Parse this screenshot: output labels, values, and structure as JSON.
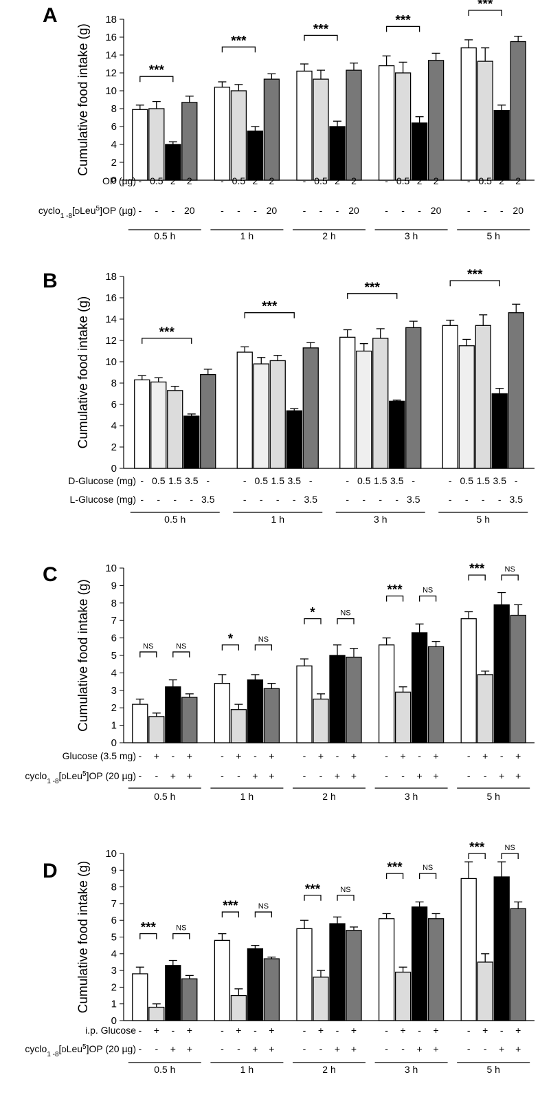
{
  "colors": {
    "white": "#ffffff",
    "light": "#dcdcdc",
    "lighter": "#efefef",
    "black": "#000000",
    "dark": "#787878"
  },
  "chart_data": [
    {
      "type": "bar",
      "panel": "A",
      "ylabel": "Cumulative food intake (g)",
      "ylim": [
        0,
        18
      ],
      "ystep": 2,
      "groups": [
        "0.5 h",
        "1 h",
        "2 h",
        "3 h",
        "5 h"
      ],
      "fills": [
        "white",
        "light",
        "black",
        "dark"
      ],
      "series": [
        {
          "name": "OP -",
          "values": [
            7.9,
            10.4,
            12.2,
            12.8,
            14.8
          ],
          "errors": [
            0.5,
            0.6,
            0.8,
            1.1,
            0.9
          ]
        },
        {
          "name": "OP 0.5 µg",
          "values": [
            8.0,
            10.0,
            11.3,
            12.0,
            13.3
          ],
          "errors": [
            0.8,
            0.7,
            1.0,
            1.2,
            1.5
          ]
        },
        {
          "name": "OP 2 µg",
          "values": [
            4.0,
            5.5,
            6.0,
            6.4,
            7.8
          ],
          "errors": [
            0.3,
            0.5,
            0.6,
            0.7,
            0.6
          ]
        },
        {
          "name": "OP 2 µg + cyclo 20 µg",
          "values": [
            8.7,
            11.3,
            12.3,
            13.4,
            15.5
          ],
          "errors": [
            0.7,
            0.6,
            0.8,
            0.8,
            0.6
          ]
        }
      ],
      "conditions": [
        {
          "label": "OP (µg)",
          "values": [
            "-",
            "0.5",
            "2",
            "2"
          ]
        },
        {
          "label": "cyclo1 -8[DLeu5]OP (µg)",
          "values": [
            "-",
            "-",
            "-",
            "20"
          ],
          "rich": true
        }
      ],
      "sig": [
        {
          "text": "***",
          "from": 0,
          "to": 2,
          "at": 11.6
        },
        {
          "text": "***",
          "from": 0,
          "to": 2,
          "at": 14.9
        },
        {
          "text": "***",
          "from": 0,
          "to": 2,
          "at": 16.2
        },
        {
          "text": "***",
          "from": 0,
          "to": 2,
          "at": 17.2
        },
        {
          "text": "***",
          "from": 0,
          "to": 2,
          "at": 19.0
        }
      ]
    },
    {
      "type": "bar",
      "panel": "B",
      "ylabel": "Cumulative food intake (g)",
      "ylim": [
        0,
        18
      ],
      "ystep": 2,
      "groups": [
        "0.5 h",
        "1 h",
        "3 h",
        "5 h"
      ],
      "fills": [
        "white",
        "lighter",
        "light",
        "black",
        "dark"
      ],
      "series": [
        {
          "name": "D-Glucose -",
          "values": [
            8.3,
            10.9,
            12.3,
            13.4
          ],
          "errors": [
            0.4,
            0.5,
            0.7,
            0.5
          ]
        },
        {
          "name": "D-Glucose 0.5 mg",
          "values": [
            8.1,
            9.8,
            11.0,
            11.5
          ],
          "errors": [
            0.4,
            0.6,
            0.7,
            0.6
          ]
        },
        {
          "name": "D-Glucose 1.5 mg",
          "values": [
            7.3,
            10.1,
            12.2,
            13.4
          ],
          "errors": [
            0.4,
            0.5,
            0.9,
            1.0
          ]
        },
        {
          "name": "D-Glucose 3.5 mg",
          "values": [
            4.9,
            5.4,
            6.3,
            7.0
          ],
          "errors": [
            0.2,
            0.2,
            0.1,
            0.5
          ]
        },
        {
          "name": "L-Glucose 3.5 mg",
          "values": [
            8.8,
            11.3,
            13.2,
            14.6
          ],
          "errors": [
            0.5,
            0.5,
            0.6,
            0.8
          ]
        }
      ],
      "conditions": [
        {
          "label": "D-Glucose (mg)",
          "values": [
            "-",
            "0.5",
            "1.5",
            "3.5",
            "-"
          ]
        },
        {
          "label": "L-Glucose (mg)",
          "values": [
            "-",
            "-",
            "-",
            "-",
            "3.5"
          ]
        }
      ],
      "sig": [
        {
          "text": "***",
          "from": 0,
          "to": 3,
          "at": 12.2
        },
        {
          "text": "***",
          "from": 0,
          "to": 3,
          "at": 14.6
        },
        {
          "text": "***",
          "from": 0,
          "to": 3,
          "at": 16.4
        },
        {
          "text": "***",
          "from": 0,
          "to": 3,
          "at": 17.6
        }
      ]
    },
    {
      "type": "bar",
      "panel": "C",
      "ylabel": "Cumulative food intake (g)",
      "ylim": [
        0,
        10
      ],
      "ystep": 1,
      "groups": [
        "0.5 h",
        "1 h",
        "2 h",
        "3 h",
        "5 h"
      ],
      "fills": [
        "white",
        "light",
        "black",
        "dark"
      ],
      "series": [
        {
          "name": "Glucose - / cyclo -",
          "values": [
            2.2,
            3.4,
            4.4,
            5.6,
            7.1
          ],
          "errors": [
            0.3,
            0.5,
            0.4,
            0.4,
            0.4
          ]
        },
        {
          "name": "Glucose + / cyclo -",
          "values": [
            1.5,
            1.9,
            2.5,
            2.9,
            3.9
          ],
          "errors": [
            0.2,
            0.3,
            0.3,
            0.3,
            0.2
          ]
        },
        {
          "name": "Glucose - / cyclo +",
          "values": [
            3.2,
            3.6,
            5.0,
            6.3,
            7.9
          ],
          "errors": [
            0.4,
            0.3,
            0.6,
            0.5,
            0.7
          ]
        },
        {
          "name": "Glucose + / cyclo +",
          "values": [
            2.6,
            3.1,
            4.9,
            5.5,
            7.3
          ],
          "errors": [
            0.2,
            0.3,
            0.5,
            0.3,
            0.6
          ]
        }
      ],
      "conditions": [
        {
          "label": "Glucose (3.5 mg)",
          "values": [
            "-",
            "+",
            "-",
            "+"
          ]
        },
        {
          "label": "cyclo1 -8[DLeu5]OP (20 µg)",
          "values": [
            "-",
            "-",
            "+",
            "+"
          ],
          "rich": true
        }
      ],
      "sig": [
        {
          "text": "NS",
          "from": 0,
          "to": 1,
          "at": 5.2
        },
        {
          "text": "NS",
          "from": 2,
          "to": 3,
          "at": 5.2
        },
        {
          "text": "*",
          "from": 0,
          "to": 1,
          "at": 5.6
        },
        {
          "text": "NS",
          "from": 2,
          "to": 3,
          "at": 5.6
        },
        {
          "text": "*",
          "from": 0,
          "to": 1,
          "at": 7.1
        },
        {
          "text": "NS",
          "from": 2,
          "to": 3,
          "at": 7.1
        },
        {
          "text": "***",
          "from": 0,
          "to": 1,
          "at": 8.4
        },
        {
          "text": "NS",
          "from": 2,
          "to": 3,
          "at": 8.4
        },
        {
          "text": "***",
          "from": 0,
          "to": 1,
          "at": 9.6
        },
        {
          "text": "NS",
          "from": 2,
          "to": 3,
          "at": 9.6
        }
      ]
    },
    {
      "type": "bar",
      "panel": "D",
      "ylabel": "Cumulative food intake (g)",
      "ylim": [
        0,
        10
      ],
      "ystep": 1,
      "groups": [
        "0.5 h",
        "1 h",
        "2 h",
        "3 h",
        "5 h"
      ],
      "fills": [
        "white",
        "light",
        "black",
        "dark"
      ],
      "series": [
        {
          "name": "i.p. Glucose - / cyclo -",
          "values": [
            2.8,
            4.8,
            5.5,
            6.1,
            8.5
          ],
          "errors": [
            0.4,
            0.4,
            0.5,
            0.3,
            1.0
          ]
        },
        {
          "name": "i.p. Glucose + / cyclo -",
          "values": [
            0.8,
            1.5,
            2.6,
            2.9,
            3.5
          ],
          "errors": [
            0.2,
            0.4,
            0.4,
            0.3,
            0.5
          ]
        },
        {
          "name": "i.p. Glucose - / cyclo +",
          "values": [
            3.3,
            4.3,
            5.8,
            6.8,
            8.6
          ],
          "errors": [
            0.3,
            0.2,
            0.4,
            0.3,
            0.9
          ]
        },
        {
          "name": "i.p. Glucose + / cyclo +",
          "values": [
            2.5,
            3.7,
            5.4,
            6.1,
            6.7
          ],
          "errors": [
            0.2,
            0.1,
            0.2,
            0.3,
            0.4
          ]
        }
      ],
      "conditions": [
        {
          "label": "i.p. Glucose",
          "values": [
            "-",
            "+",
            "-",
            "+"
          ]
        },
        {
          "label": "cyclo1 -8[DLeu5]OP (20 µg)",
          "values": [
            "-",
            "-",
            "+",
            "+"
          ],
          "rich": true
        }
      ],
      "sig": [
        {
          "text": "***",
          "from": 0,
          "to": 1,
          "at": 5.2
        },
        {
          "text": "NS",
          "from": 2,
          "to": 3,
          "at": 5.2
        },
        {
          "text": "***",
          "from": 0,
          "to": 1,
          "at": 6.5
        },
        {
          "text": "NS",
          "from": 2,
          "to": 3,
          "at": 6.5
        },
        {
          "text": "***",
          "from": 0,
          "to": 1,
          "at": 7.5
        },
        {
          "text": "NS",
          "from": 2,
          "to": 3,
          "at": 7.5
        },
        {
          "text": "***",
          "from": 0,
          "to": 1,
          "at": 8.8
        },
        {
          "text": "NS",
          "from": 2,
          "to": 3,
          "at": 8.8
        },
        {
          "text": "***",
          "from": 0,
          "to": 1,
          "at": 10.0
        },
        {
          "text": "NS",
          "from": 2,
          "to": 3,
          "at": 10.0
        }
      ]
    }
  ]
}
